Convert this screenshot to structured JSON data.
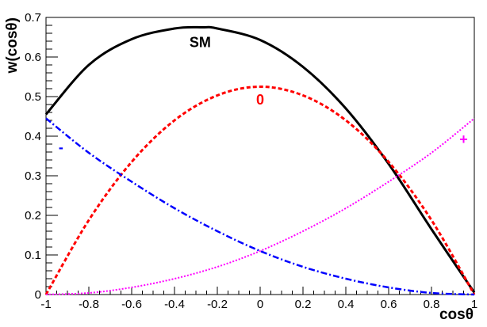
{
  "chart_data": {
    "type": "line",
    "xlabel": "cosθ",
    "ylabel": "w(cosθ)",
    "xlim": [
      -1,
      1
    ],
    "ylim": [
      0,
      0.7
    ],
    "x_ticks": [
      "-1",
      "-0.8",
      "-0.6",
      "-0.4",
      "-0.2",
      "0",
      "0.2",
      "0.4",
      "0.6",
      "0.8",
      "1"
    ],
    "y_ticks": [
      "0",
      "0.1",
      "0.2",
      "0.3",
      "0.4",
      "0.5",
      "0.6",
      "0.7"
    ],
    "grid": false,
    "series": [
      {
        "name": "SM",
        "color": "#000000",
        "style": "solid",
        "x": [
          -1,
          -0.8,
          -0.6,
          -0.4,
          -0.27,
          -0.2,
          0,
          0.2,
          0.4,
          0.6,
          0.8,
          1
        ],
        "y": [
          0.455,
          0.58,
          0.645,
          0.672,
          0.675,
          0.672,
          0.643,
          0.575,
          0.47,
          0.33,
          0.165,
          0.005
        ]
      },
      {
        "name": "0",
        "color": "#ff0000",
        "style": "dashed",
        "x": [
          -1,
          -0.8,
          -0.6,
          -0.4,
          -0.2,
          0,
          0.2,
          0.4,
          0.6,
          0.8,
          1
        ],
        "y": [
          0,
          0.188,
          0.335,
          0.44,
          0.503,
          0.525,
          0.503,
          0.44,
          0.335,
          0.188,
          0
        ]
      },
      {
        "name": "-",
        "color": "#0000ff",
        "style": "dashdot",
        "x": [
          -1,
          -0.8,
          -0.6,
          -0.4,
          -0.2,
          0,
          0.2,
          0.4,
          0.6,
          0.8,
          1
        ],
        "y": [
          0.445,
          0.358,
          0.285,
          0.218,
          0.16,
          0.11,
          0.07,
          0.04,
          0.018,
          0.004,
          0
        ]
      },
      {
        "name": "+",
        "color": "#ff00ff",
        "style": "dotted",
        "x": [
          -1,
          -0.8,
          -0.6,
          -0.4,
          -0.2,
          0,
          0.2,
          0.4,
          0.6,
          0.8,
          1
        ],
        "y": [
          0,
          0.004,
          0.018,
          0.04,
          0.07,
          0.11,
          0.16,
          0.218,
          0.285,
          0.358,
          0.445
        ]
      }
    ],
    "labels": [
      {
        "text": "SM",
        "x": -0.28,
        "y": 0.625,
        "color": "#000000"
      },
      {
        "text": "0",
        "x": 0.0,
        "y": 0.48,
        "color": "#ff0000"
      },
      {
        "text": "-",
        "x": -0.93,
        "y": 0.36,
        "color": "#0000ff"
      },
      {
        "text": "+",
        "x": 0.95,
        "y": 0.38,
        "color": "#ff00ff"
      }
    ]
  }
}
